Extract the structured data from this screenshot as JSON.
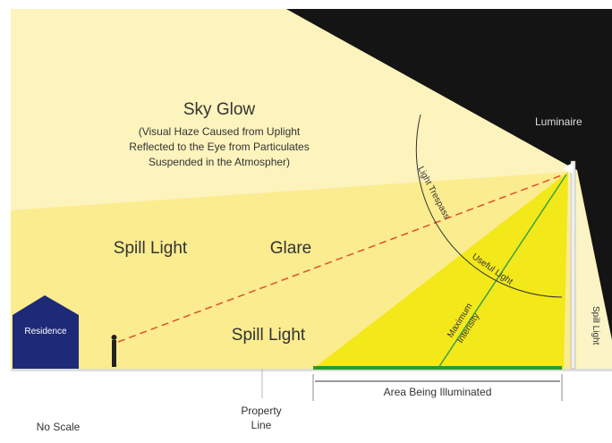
{
  "sky_glow": {
    "title": "Sky Glow",
    "lines": [
      "(Visual Haze Caused from Uplight",
      "Reflected to the Eye from Particulates",
      "Suspended in the Atmospher)"
    ]
  },
  "luminaire": "Luminaire",
  "light_trespass": "Light Trespass",
  "useful_light": "Useful Light",
  "maximum_intensity": [
    "Maximum",
    "Intensity"
  ],
  "spill_light_left": "Spill Light",
  "glare": "Glare",
  "spill_light_bottom": "Spill Light",
  "spill_light_right": "Spill Light",
  "residence": "Residence",
  "area_being_illuminated": "Area Being Illuminated",
  "property_line": [
    "Property",
    "Line"
  ],
  "no_scale": "No Scale"
}
